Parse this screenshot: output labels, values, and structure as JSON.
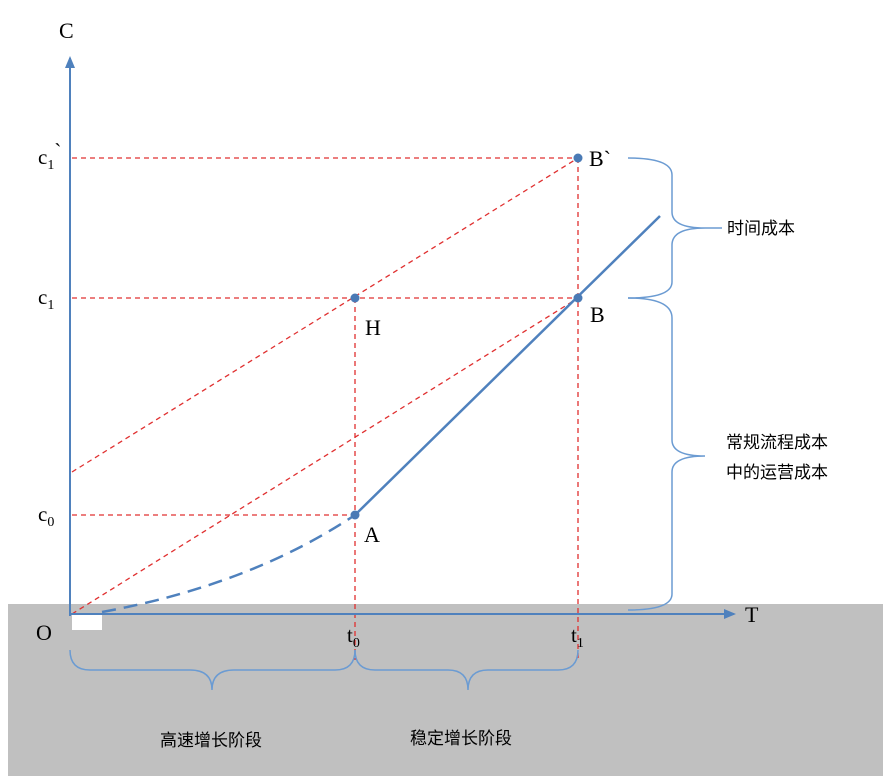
{
  "axes": {
    "y_label": "C",
    "x_label": "T",
    "origin_label": "O"
  },
  "y_ticks": [
    {
      "base": "c",
      "sub": "1",
      "suffix": "`"
    },
    {
      "base": "c",
      "sub": "1",
      "suffix": ""
    },
    {
      "base": "c",
      "sub": "0",
      "suffix": ""
    }
  ],
  "x_ticks": [
    {
      "base": "t",
      "sub": "0"
    },
    {
      "base": "t",
      "sub": "1"
    }
  ],
  "points": {
    "b_prime": "B`",
    "h": "H",
    "b": "B",
    "a": "A"
  },
  "braces": {
    "time_cost": "时间成本",
    "routine_line1": "常规流程成本",
    "routine_line2": "中的运营成本",
    "rapid_growth": "高速增长阶段",
    "stable_growth": "稳定增长阶段"
  },
  "colors": {
    "axis": "#4f81bd",
    "curve": "#4f81bd",
    "guide": "#e03030",
    "brace": "#6b9bd2",
    "point": "#4a7ab5",
    "band": "#c0c0c0"
  }
}
